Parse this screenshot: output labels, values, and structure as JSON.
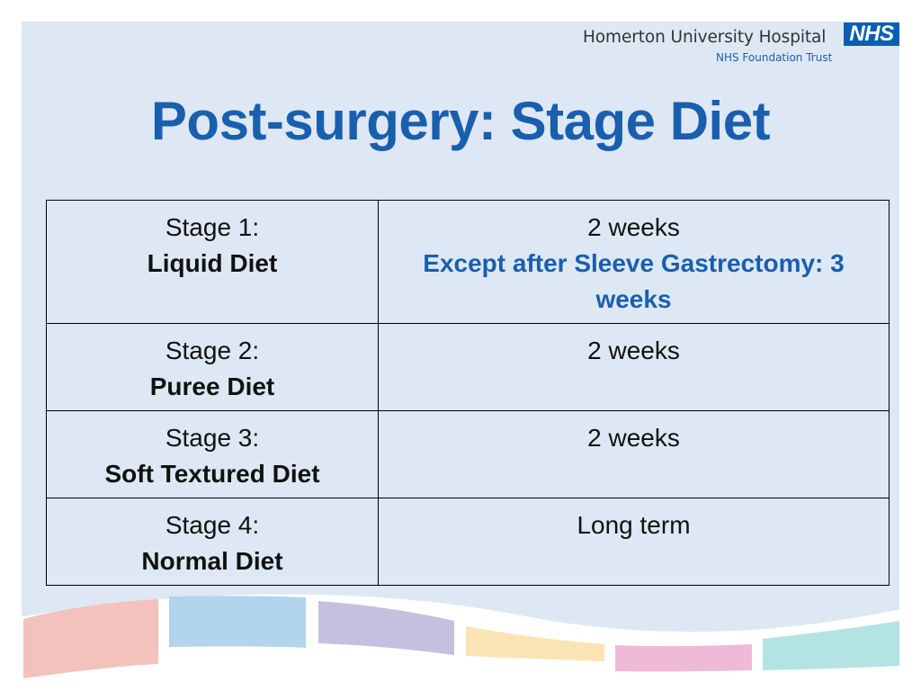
{
  "header": {
    "hospital_name": "Homerton University Hospital",
    "trust_name": "NHS Foundation Trust",
    "logo_text": "NHS"
  },
  "title": "Post-surgery: Stage Diet",
  "table": {
    "rows": [
      {
        "stage": "Stage 1:",
        "diet": "Liquid Diet",
        "duration": "2 weeks",
        "note": "Except after Sleeve Gastrectomy: 3 weeks"
      },
      {
        "stage": "Stage 2:",
        "diet": "Puree Diet",
        "duration": "2 weeks",
        "note": ""
      },
      {
        "stage": "Stage 3:",
        "diet": "Soft Textured Diet",
        "duration": "2 weeks",
        "note": ""
      },
      {
        "stage": "Stage 4:",
        "diet": "Normal Diet",
        "duration": "Long term",
        "note": ""
      }
    ]
  },
  "colors": {
    "slide_background": "#dde8f4",
    "title_blue": "#1a5fae",
    "nhs_blue": "#0a5fb4",
    "wave_bands": [
      "#f4c2bd",
      "#b2d4ec",
      "#c4c0df",
      "#fae4b4",
      "#eebad8",
      "#b4e3e4"
    ]
  }
}
